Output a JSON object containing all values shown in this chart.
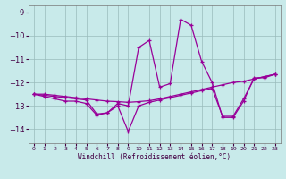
{
  "bg_color": "#c8eaea",
  "line_color": "#990099",
  "grid_color": "#99bbbb",
  "ylim": [
    -14.6,
    -8.7
  ],
  "xlim": [
    -0.5,
    23.5
  ],
  "yticks": [
    -14,
    -13,
    -12,
    -11,
    -10,
    -9
  ],
  "xticks": [
    0,
    1,
    2,
    3,
    4,
    5,
    6,
    7,
    8,
    9,
    10,
    11,
    12,
    13,
    14,
    15,
    16,
    17,
    18,
    19,
    20,
    21,
    22,
    23
  ],
  "xlabel": "Windchill (Refroidissement éolien,°C)",
  "series": [
    {
      "x": [
        0,
        1,
        2,
        3,
        4,
        5,
        6,
        7,
        8,
        9,
        10,
        11,
        12,
        13,
        14,
        15,
        16,
        17,
        18,
        19,
        20,
        21,
        22,
        23
      ],
      "y": [
        -12.5,
        -12.6,
        -12.7,
        -12.8,
        -12.8,
        -12.9,
        -13.4,
        -13.3,
        -12.9,
        -13.0,
        -10.5,
        -10.2,
        -12.2,
        -12.05,
        -9.3,
        -9.55,
        -11.1,
        -12.0,
        -13.5,
        -13.5,
        -12.8,
        -11.8,
        -11.8,
        -11.65
      ]
    },
    {
      "x": [
        0,
        1,
        2,
        3,
        4,
        5,
        6,
        7,
        8,
        9,
        10,
        11,
        12,
        13,
        14,
        15,
        16,
        17,
        18,
        19,
        20,
        21,
        22,
        23
      ],
      "y": [
        -12.5,
        -12.5,
        -12.55,
        -12.6,
        -12.65,
        -12.7,
        -12.75,
        -12.8,
        -12.82,
        -12.85,
        -12.82,
        -12.78,
        -12.7,
        -12.6,
        -12.5,
        -12.4,
        -12.3,
        -12.2,
        -12.1,
        -12.0,
        -11.95,
        -11.85,
        -11.75,
        -11.65
      ]
    },
    {
      "x": [
        0,
        1,
        2,
        3,
        4,
        5,
        6,
        7,
        8,
        9,
        10,
        11,
        12,
        13,
        14,
        15,
        16,
        17,
        18,
        19,
        20,
        21,
        22,
        23
      ],
      "y": [
        -12.5,
        -12.55,
        -12.6,
        -12.65,
        -12.7,
        -12.75,
        -13.35,
        -13.3,
        -13.0,
        -14.1,
        -13.0,
        -12.85,
        -12.75,
        -12.65,
        -12.55,
        -12.45,
        -12.35,
        -12.25,
        -13.45,
        -13.45,
        -12.7,
        -11.85,
        -11.75,
        -11.65
      ]
    }
  ]
}
